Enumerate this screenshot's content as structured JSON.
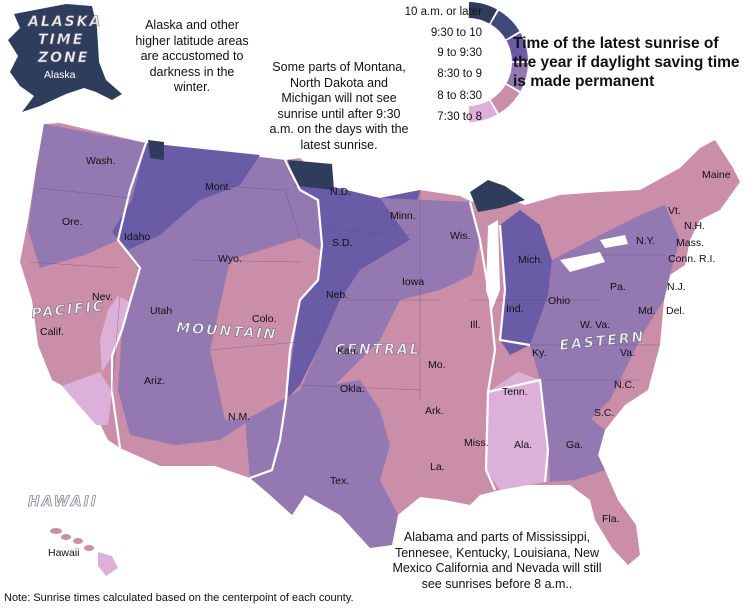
{
  "title": "Time of the latest sunrise of the year if daylight saving time is made permanent",
  "legend": {
    "items": [
      {
        "label": "10 a.m. or later",
        "color": "#2e3d5c"
      },
      {
        "label": "9:30 to 10",
        "color": "#3f4a78"
      },
      {
        "label": "9 to 9:30",
        "color": "#6a5ba6"
      },
      {
        "label": "8:30 to 9",
        "color": "#9478b2"
      },
      {
        "label": "8 to 8:30",
        "color": "#cb8ea8"
      },
      {
        "label": "7:30 to 8",
        "color": "#ddb0d9"
      }
    ]
  },
  "annotations": {
    "alaska": "Alaska and other higher latitude areas are accustomed to darkness in the winter.",
    "montana": "Some parts of Montana, North Dakota and Michigan will not see sunrise until after 9:30 a.m. on the days with the latest sunrise.",
    "alabama": "Alabama and parts of Mississippi, Tennesee, Kentucky, Louisiana, New Mexico California and Nevada will still see sunrises before 8 a.m..",
    "footnote": "Note: Sunrise times calculated based on the centerpoint of each county."
  },
  "zones": {
    "alaska_line1": "ALASKA",
    "alaska_line2": "TIME",
    "alaska_line3": "ZONE",
    "pacific": "PACIFIC",
    "mountain": "MOUNTAIN",
    "central": "CENTRAL",
    "eastern": "EASTERN",
    "hawaii": "HAWAII"
  },
  "states": {
    "alaska": "Alaska",
    "hawaii": "Hawaii",
    "wash": "Wash.",
    "ore": "Ore.",
    "calif": "Calif.",
    "nev": "Nev.",
    "idaho": "Idaho",
    "mont": "Mont.",
    "wyo": "Wyo.",
    "utah": "Utah",
    "colo": "Colo.",
    "ariz": "Ariz.",
    "nm": "N.M.",
    "nd": "N.D.",
    "sd": "S.D.",
    "neb": "Neb.",
    "kan": "Kan.",
    "okla": "Okla.",
    "tex": "Tex.",
    "minn": "Minn.",
    "iowa": "Iowa",
    "mo": "Mo.",
    "ark": "Ark.",
    "la": "La.",
    "wis": "Wis.",
    "ill": "Ill.",
    "mich": "Mich.",
    "ind": "Ind.",
    "ohio": "Ohio",
    "ky": "Ky.",
    "tenn": "Tenn.",
    "miss": "Miss.",
    "ala": "Ala.",
    "ga": "Ga.",
    "fla": "Fla.",
    "sc": "S.C.",
    "nc": "N.C.",
    "va": "Va.",
    "wva": "W. Va.",
    "pa": "Pa.",
    "ny": "N.Y.",
    "vt": "Vt.",
    "nh": "N.H.",
    "maine": "Maine",
    "mass": "Mass.",
    "conn": "Conn.",
    "ri": "R.I.",
    "nj": "N.J.",
    "md": "Md.",
    "del": "Del."
  }
}
